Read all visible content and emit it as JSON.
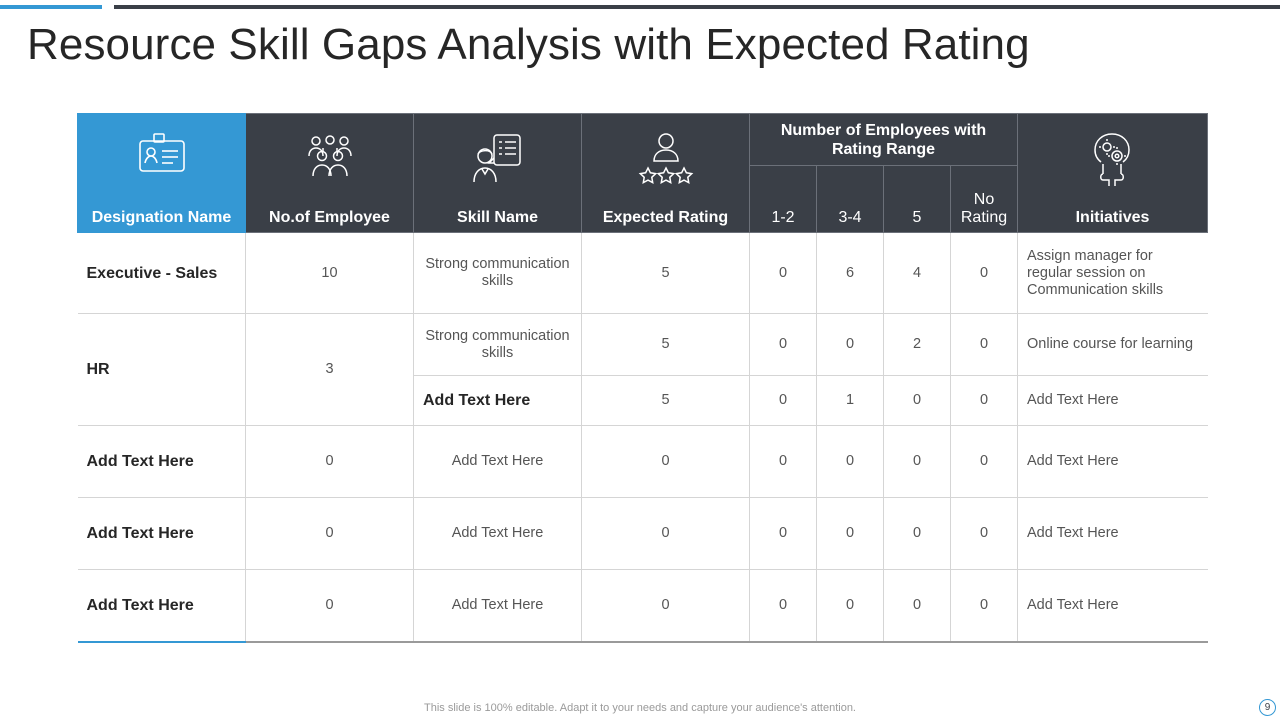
{
  "slide": {
    "title": "Resource Skill Gaps Analysis with Expected Rating",
    "footer": "This slide is 100% editable. Adapt it to your needs and capture your audience's attention.",
    "page_number": "9",
    "accent_color": "#3498d4",
    "dark_color": "#3a3f47"
  },
  "table": {
    "headers": {
      "designation": {
        "label": "Designation Name",
        "icon": "id-card-icon"
      },
      "employees": {
        "label": "No.of Employee",
        "icon": "team-icon"
      },
      "skill": {
        "label": "Skill Name",
        "icon": "person-checklist-icon"
      },
      "expected": {
        "label": "Expected Rating",
        "icon": "user-stars-icon"
      },
      "group": "Number of Employees with Rating Range",
      "range_1_2": "1-2",
      "range_3_4": "3-4",
      "range_5": "5",
      "range_none": "No Rating",
      "initiatives": {
        "label": "Initiatives",
        "icon": "head-gears-icon"
      }
    },
    "rows": [
      {
        "designation": "Executive  - Sales",
        "employees": "10",
        "skill": "Strong communication skills",
        "expected": "5",
        "r12": "0",
        "r34": "6",
        "r5": "4",
        "rnone": "0",
        "initiative": "Assign manager for regular session on Communication skills"
      },
      {
        "designation": "HR",
        "employees": "3",
        "skill": "Strong communication skills",
        "expected": "5",
        "r12": "0",
        "r34": "0",
        "r5": "2",
        "rnone": "0",
        "initiative": "Online course for learning"
      },
      {
        "skill": "Add Text Here",
        "expected": "5",
        "r12": "0",
        "r34": "1",
        "r5": "0",
        "rnone": "0",
        "initiative": "Add Text Here"
      },
      {
        "designation": "Add Text Here",
        "employees": "0",
        "skill": "Add Text Here",
        "expected": "0",
        "r12": "0",
        "r34": "0",
        "r5": "0",
        "rnone": "0",
        "initiative": "Add Text Here"
      },
      {
        "designation": "Add Text Here",
        "employees": "0",
        "skill": "Add Text Here",
        "expected": "0",
        "r12": "0",
        "r34": "0",
        "r5": "0",
        "rnone": "0",
        "initiative": "Add Text Here"
      },
      {
        "designation": "Add Text Here",
        "employees": "0",
        "skill": "Add Text Here",
        "expected": "0",
        "r12": "0",
        "r34": "0",
        "r5": "0",
        "rnone": "0",
        "initiative": "Add Text Here"
      }
    ]
  }
}
